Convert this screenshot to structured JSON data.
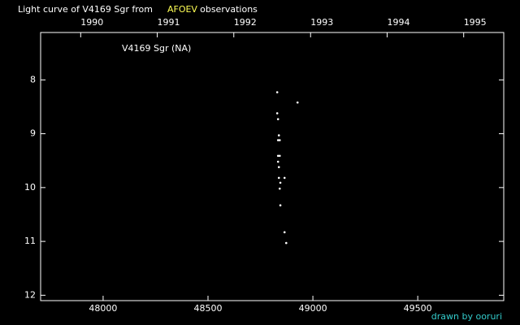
{
  "chart_data": {
    "type": "scatter",
    "title_parts": [
      "Light curve of V4169 Sgr from",
      "AFOEV",
      "observations"
    ],
    "title_colors": [
      "#ffffff",
      "#ffff55",
      "#ffffff"
    ],
    "label": "V4169 Sgr (NA)",
    "credit": "drawn by ooruri",
    "credit_color": "#33cccc",
    "background": "#000000",
    "axis_color": "#ffffff",
    "series": [
      {
        "name": "V4169 Sgr",
        "color": "#ffffff",
        "x": [
          48830,
          48927,
          48830,
          48834,
          48838,
          48834,
          48842,
          48834,
          48842,
          48834,
          48838,
          48838,
          48865,
          48845,
          48842,
          48845,
          48865,
          48873
        ],
        "values": [
          8.23,
          8.42,
          8.62,
          8.73,
          9.03,
          9.12,
          9.12,
          9.41,
          9.41,
          9.52,
          9.62,
          9.82,
          9.82,
          9.91,
          10.02,
          10.33,
          10.83,
          11.03
        ]
      }
    ],
    "xlim": [
      47702,
      49910
    ],
    "xticks": [
      48000,
      48500,
      49000,
      49500
    ],
    "x2ticks": [
      {
        "value": 47893,
        "label": "1990"
      },
      {
        "value": 48258,
        "label": "1991"
      },
      {
        "value": 48623,
        "label": "1992"
      },
      {
        "value": 48989,
        "label": "1993"
      },
      {
        "value": 49354,
        "label": "1994"
      },
      {
        "value": 49719,
        "label": "1995"
      }
    ],
    "ylim": [
      7.12,
      12.1
    ],
    "yticks": [
      8,
      9,
      10,
      11,
      12
    ],
    "invert_y": true
  }
}
